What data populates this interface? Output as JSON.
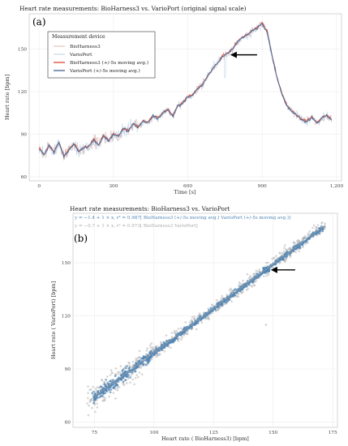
{
  "chart_data": [
    {
      "type": "line",
      "panel_label": "(a)",
      "title": "Heart rate measurements:  BioHarness3 vs.  VarioPort (original signal scale)",
      "xlabel": "Time [s]",
      "ylabel": "Heart rate [bpm]",
      "xlim": [
        -40,
        1220
      ],
      "ylim": [
        57,
        175
      ],
      "xticks": [
        0,
        300,
        600,
        900,
        1200
      ],
      "xtick_labels": [
        "0",
        "300",
        "600",
        "900",
        "1,200"
      ],
      "yticks": [
        60,
        90,
        120,
        150
      ],
      "ytick_labels": [
        "60",
        "90",
        "120",
        "150"
      ],
      "grid": true,
      "legend": {
        "title": "Measurement device",
        "placement": "top-left",
        "entries": [
          "BioHarness3",
          "VarioPort",
          "BioHarness3 (+/-5s moving avg.)",
          "VarioPort (+/-5s moving avg.)"
        ]
      },
      "series": [
        {
          "name": "VarioPort (+/-5s moving avg.)",
          "x": [
            0,
            20,
            40,
            60,
            80,
            100,
            120,
            140,
            160,
            180,
            200,
            220,
            240,
            260,
            280,
            300,
            320,
            340,
            360,
            380,
            400,
            420,
            440,
            460,
            480,
            500,
            520,
            540,
            560,
            580,
            600,
            620,
            640,
            660,
            680,
            700,
            720,
            740,
            760,
            780,
            800,
            820,
            840,
            860,
            880,
            900,
            920,
            940,
            960,
            980,
            1000,
            1020,
            1040,
            1060,
            1080,
            1100,
            1120,
            1140,
            1160,
            1180
          ],
          "values": [
            80,
            75,
            82,
            77,
            84,
            74,
            79,
            83,
            78,
            80,
            81,
            86,
            82,
            89,
            85,
            90,
            88,
            94,
            92,
            97,
            95,
            99,
            98,
            103,
            101,
            105,
            107,
            103,
            110,
            112,
            116,
            118,
            122,
            125,
            131,
            136,
            140,
            145,
            147,
            150,
            155,
            158,
            160,
            163,
            165,
            168,
            162,
            145,
            130,
            118,
            110,
            106,
            103,
            100,
            99,
            102,
            98,
            101,
            103,
            100
          ]
        }
      ],
      "annotations": [
        {
          "type": "arrow",
          "points_to": {
            "x": 755,
            "y": 146
          }
        }
      ]
    },
    {
      "type": "scatter",
      "panel_label": "(b)",
      "title": "Heart rate measurements:  BioHarness3 vs. VarioPort",
      "xlabel": "Heart rate ( BioHarness3) [bpm]",
      "ylabel": "Heart rate ( VarioPort) [bpm]",
      "xlim": [
        66,
        177
      ],
      "ylim": [
        57,
        178
      ],
      "xticks": [
        75,
        100,
        125,
        150,
        175
      ],
      "xtick_labels": [
        "75",
        "100",
        "125",
        "150",
        "175"
      ],
      "yticks": [
        60,
        90,
        120,
        150
      ],
      "ytick_labels": [
        "60",
        "90",
        "120",
        "150"
      ],
      "grid": true,
      "equations": [
        {
          "text": "y = −1.4 + 1 × x,   r² = 0.987[ BioHarness3 (+/-5s moving avg.)  VarioPort (+/-5s moving avg.)]",
          "color": "#4f86b8"
        },
        {
          "text": "y = −0.7 + 1 × x,   r² = 0.973[ BioHarness3   VarioPort]",
          "color": "#aaaaaa"
        }
      ],
      "fit_lines": [
        {
          "intercept": -1.4,
          "slope": 1,
          "x_range": [
            75,
            172
          ],
          "color": "#4f86b8"
        },
        {
          "intercept": -0.7,
          "slope": 1,
          "x_range": [
            73,
            172
          ],
          "color": "#999999"
        }
      ],
      "series": [
        {
          "x": [
            75,
            78,
            80,
            82,
            85,
            88,
            90,
            93,
            95,
            98,
            100,
            103,
            105,
            108,
            110,
            113,
            115,
            118,
            120,
            123,
            125,
            128,
            130,
            133,
            135,
            138,
            140,
            143,
            145,
            148,
            150,
            153,
            155,
            158,
            160,
            163,
            165,
            168,
            170
          ],
          "values": [
            74,
            77,
            80,
            81,
            84,
            87,
            89,
            92,
            94,
            97,
            99,
            102,
            104,
            106,
            109,
            112,
            114,
            117,
            119,
            122,
            124,
            127,
            129,
            132,
            134,
            137,
            139,
            142,
            144,
            147,
            149,
            152,
            154,
            157,
            159,
            162,
            164,
            167,
            169
          ],
          "color": "#4f86b8"
        }
      ],
      "annotations": [
        {
          "type": "arrow",
          "points_to": {
            "x": 147,
            "y": 146
          }
        }
      ]
    }
  ]
}
